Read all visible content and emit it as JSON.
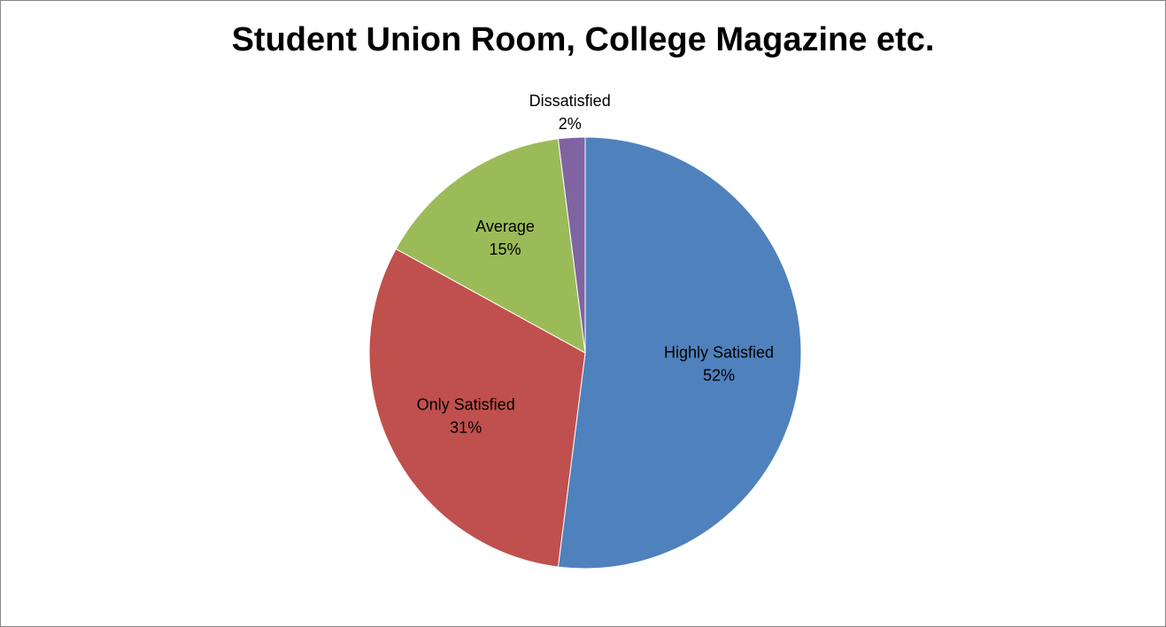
{
  "chart_data": {
    "type": "pie",
    "title": "Student Union Room, College Magazine etc.",
    "categories": [
      "Highly Satisfied",
      "Only Satisfied",
      "Average",
      "Dissatisfied"
    ],
    "values": [
      52,
      31,
      15,
      2
    ],
    "value_labels": [
      "52%",
      "31%",
      "15%",
      "2%"
    ],
    "colors": [
      "#4F81BD",
      "#C0504D",
      "#9BBB59",
      "#8064A2"
    ],
    "legend": "none",
    "start_angle_deg": 0,
    "direction": "clockwise"
  }
}
